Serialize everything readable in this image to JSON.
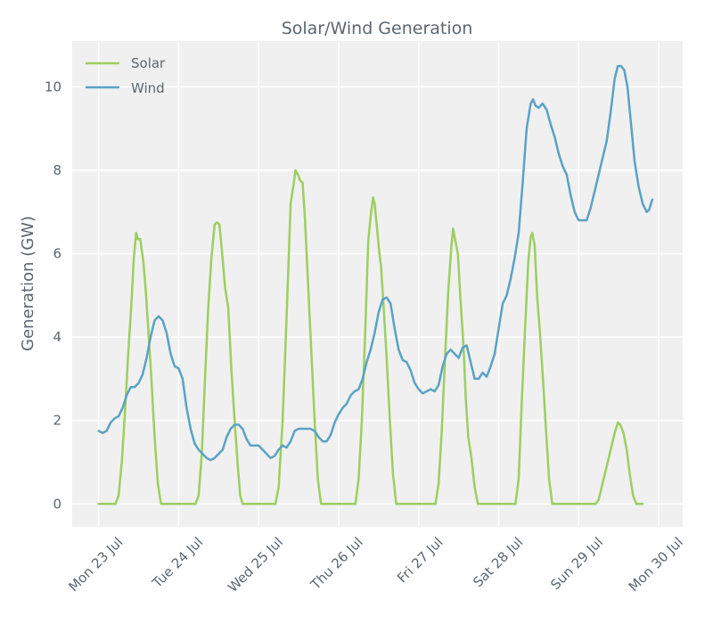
{
  "chart_data": {
    "type": "line",
    "title": "Solar/Wind Generation",
    "xlabel": "",
    "ylabel": "Generation (GW)",
    "ylim": [
      -0.55,
      11.1
    ],
    "xlim_days": [
      -0.33,
      7.3
    ],
    "yticks": [
      0,
      2,
      4,
      6,
      8,
      10
    ],
    "x_tick_labels": [
      "Mon 23 Jul",
      "Tue 24 Jul",
      "Wed 25 Jul",
      "Thu 26 Jul",
      "Fri 27 Jul",
      "Sat 28 Jul",
      "Sun 29 Jul",
      "Mon 30 Jul"
    ],
    "grid": true,
    "legend_position": "top-left",
    "series": [
      {
        "name": "Solar",
        "color": "#9ccf5f",
        "points": [
          [
            0.0,
            0.0
          ],
          [
            0.21,
            0.0
          ],
          [
            0.25,
            0.2
          ],
          [
            0.29,
            1.0
          ],
          [
            0.33,
            2.2
          ],
          [
            0.37,
            3.6
          ],
          [
            0.41,
            4.8
          ],
          [
            0.44,
            5.9
          ],
          [
            0.47,
            6.5
          ],
          [
            0.49,
            6.35
          ],
          [
            0.52,
            6.35
          ],
          [
            0.56,
            5.8
          ],
          [
            0.59,
            5.1
          ],
          [
            0.62,
            4.2
          ],
          [
            0.66,
            3.0
          ],
          [
            0.7,
            1.6
          ],
          [
            0.74,
            0.5
          ],
          [
            0.78,
            0.0
          ],
          [
            1.21,
            0.0
          ],
          [
            1.25,
            0.2
          ],
          [
            1.29,
            1.2
          ],
          [
            1.33,
            3.0
          ],
          [
            1.37,
            4.7
          ],
          [
            1.41,
            5.9
          ],
          [
            1.45,
            6.7
          ],
          [
            1.48,
            6.75
          ],
          [
            1.51,
            6.7
          ],
          [
            1.54,
            6.1
          ],
          [
            1.58,
            5.2
          ],
          [
            1.62,
            4.7
          ],
          [
            1.66,
            3.2
          ],
          [
            1.7,
            2.0
          ],
          [
            1.74,
            0.9
          ],
          [
            1.77,
            0.2
          ],
          [
            1.8,
            0.0
          ],
          [
            2.21,
            0.0
          ],
          [
            2.25,
            0.4
          ],
          [
            2.3,
            2.0
          ],
          [
            2.35,
            4.5
          ],
          [
            2.4,
            7.2
          ],
          [
            2.44,
            7.7
          ],
          [
            2.46,
            8.0
          ],
          [
            2.49,
            7.9
          ],
          [
            2.52,
            7.75
          ],
          [
            2.55,
            7.7
          ],
          [
            2.58,
            6.8
          ],
          [
            2.62,
            5.2
          ],
          [
            2.66,
            3.6
          ],
          [
            2.7,
            2.0
          ],
          [
            2.74,
            0.6
          ],
          [
            2.78,
            0.0
          ],
          [
            3.21,
            0.0
          ],
          [
            3.25,
            0.6
          ],
          [
            3.29,
            2.0
          ],
          [
            3.33,
            4.0
          ],
          [
            3.37,
            6.3
          ],
          [
            3.4,
            6.9
          ],
          [
            3.43,
            7.35
          ],
          [
            3.45,
            7.2
          ],
          [
            3.48,
            6.6
          ],
          [
            3.51,
            6.0
          ],
          [
            3.53,
            5.7
          ],
          [
            3.56,
            4.8
          ],
          [
            3.6,
            3.5
          ],
          [
            3.64,
            2.0
          ],
          [
            3.68,
            0.7
          ],
          [
            3.72,
            0.0
          ],
          [
            4.21,
            0.0
          ],
          [
            4.25,
            0.5
          ],
          [
            4.29,
            1.8
          ],
          [
            4.33,
            3.5
          ],
          [
            4.37,
            5.1
          ],
          [
            4.41,
            6.2
          ],
          [
            4.43,
            6.6
          ],
          [
            4.46,
            6.3
          ],
          [
            4.49,
            6.0
          ],
          [
            4.52,
            5.0
          ],
          [
            4.56,
            3.8
          ],
          [
            4.59,
            2.5
          ],
          [
            4.62,
            1.6
          ],
          [
            4.66,
            1.1
          ],
          [
            4.7,
            0.4
          ],
          [
            4.74,
            0.0
          ],
          [
            5.21,
            0.0
          ],
          [
            5.25,
            0.6
          ],
          [
            5.29,
            2.5
          ],
          [
            5.33,
            4.2
          ],
          [
            5.37,
            5.8
          ],
          [
            5.4,
            6.4
          ],
          [
            5.42,
            6.5
          ],
          [
            5.45,
            6.2
          ],
          [
            5.48,
            5.0
          ],
          [
            5.52,
            4.0
          ],
          [
            5.56,
            2.8
          ],
          [
            5.6,
            1.5
          ],
          [
            5.63,
            0.6
          ],
          [
            5.67,
            0.0
          ],
          [
            6.21,
            0.0
          ],
          [
            6.25,
            0.1
          ],
          [
            6.3,
            0.5
          ],
          [
            6.35,
            0.9
          ],
          [
            6.4,
            1.3
          ],
          [
            6.45,
            1.7
          ],
          [
            6.49,
            1.95
          ],
          [
            6.52,
            1.9
          ],
          [
            6.56,
            1.7
          ],
          [
            6.6,
            1.3
          ],
          [
            6.64,
            0.7
          ],
          [
            6.68,
            0.2
          ],
          [
            6.72,
            0.0
          ],
          [
            6.8,
            0.0
          ]
        ]
      },
      {
        "name": "Wind",
        "color": "#5aa2c4",
        "points": [
          [
            0.0,
            1.75
          ],
          [
            0.05,
            1.7
          ],
          [
            0.1,
            1.75
          ],
          [
            0.15,
            1.95
          ],
          [
            0.2,
            2.05
          ],
          [
            0.25,
            2.1
          ],
          [
            0.3,
            2.3
          ],
          [
            0.35,
            2.6
          ],
          [
            0.4,
            2.8
          ],
          [
            0.45,
            2.8
          ],
          [
            0.5,
            2.9
          ],
          [
            0.55,
            3.1
          ],
          [
            0.6,
            3.5
          ],
          [
            0.65,
            4.0
          ],
          [
            0.7,
            4.4
          ],
          [
            0.75,
            4.5
          ],
          [
            0.8,
            4.4
          ],
          [
            0.85,
            4.1
          ],
          [
            0.9,
            3.6
          ],
          [
            0.95,
            3.3
          ],
          [
            1.0,
            3.25
          ],
          [
            1.05,
            3.0
          ],
          [
            1.1,
            2.3
          ],
          [
            1.15,
            1.8
          ],
          [
            1.2,
            1.45
          ],
          [
            1.25,
            1.3
          ],
          [
            1.3,
            1.2
          ],
          [
            1.35,
            1.1
          ],
          [
            1.4,
            1.05
          ],
          [
            1.45,
            1.1
          ],
          [
            1.5,
            1.2
          ],
          [
            1.55,
            1.3
          ],
          [
            1.6,
            1.6
          ],
          [
            1.65,
            1.8
          ],
          [
            1.7,
            1.9
          ],
          [
            1.75,
            1.9
          ],
          [
            1.8,
            1.8
          ],
          [
            1.85,
            1.55
          ],
          [
            1.9,
            1.4
          ],
          [
            1.95,
            1.4
          ],
          [
            2.0,
            1.4
          ],
          [
            2.05,
            1.3
          ],
          [
            2.1,
            1.2
          ],
          [
            2.15,
            1.1
          ],
          [
            2.2,
            1.15
          ],
          [
            2.25,
            1.3
          ],
          [
            2.3,
            1.4
          ],
          [
            2.35,
            1.35
          ],
          [
            2.4,
            1.5
          ],
          [
            2.45,
            1.75
          ],
          [
            2.5,
            1.8
          ],
          [
            2.55,
            1.8
          ],
          [
            2.6,
            1.8
          ],
          [
            2.65,
            1.8
          ],
          [
            2.7,
            1.75
          ],
          [
            2.75,
            1.6
          ],
          [
            2.8,
            1.5
          ],
          [
            2.85,
            1.5
          ],
          [
            2.9,
            1.65
          ],
          [
            2.95,
            1.95
          ],
          [
            3.0,
            2.15
          ],
          [
            3.05,
            2.3
          ],
          [
            3.1,
            2.4
          ],
          [
            3.15,
            2.6
          ],
          [
            3.2,
            2.7
          ],
          [
            3.25,
            2.75
          ],
          [
            3.3,
            3.0
          ],
          [
            3.35,
            3.4
          ],
          [
            3.4,
            3.7
          ],
          [
            3.45,
            4.1
          ],
          [
            3.5,
            4.6
          ],
          [
            3.55,
            4.9
          ],
          [
            3.6,
            4.95
          ],
          [
            3.65,
            4.8
          ],
          [
            3.7,
            4.2
          ],
          [
            3.75,
            3.7
          ],
          [
            3.8,
            3.45
          ],
          [
            3.85,
            3.4
          ],
          [
            3.9,
            3.2
          ],
          [
            3.95,
            2.9
          ],
          [
            4.0,
            2.75
          ],
          [
            4.05,
            2.65
          ],
          [
            4.1,
            2.7
          ],
          [
            4.15,
            2.75
          ],
          [
            4.2,
            2.7
          ],
          [
            4.25,
            2.85
          ],
          [
            4.3,
            3.3
          ],
          [
            4.35,
            3.6
          ],
          [
            4.4,
            3.7
          ],
          [
            4.45,
            3.6
          ],
          [
            4.5,
            3.5
          ],
          [
            4.55,
            3.75
          ],
          [
            4.6,
            3.8
          ],
          [
            4.65,
            3.4
          ],
          [
            4.7,
            3.0
          ],
          [
            4.75,
            3.0
          ],
          [
            4.8,
            3.15
          ],
          [
            4.85,
            3.05
          ],
          [
            4.9,
            3.3
          ],
          [
            4.95,
            3.6
          ],
          [
            5.0,
            4.2
          ],
          [
            5.05,
            4.8
          ],
          [
            5.1,
            5.0
          ],
          [
            5.15,
            5.4
          ],
          [
            5.2,
            5.9
          ],
          [
            5.25,
            6.5
          ],
          [
            5.3,
            7.7
          ],
          [
            5.35,
            9.0
          ],
          [
            5.4,
            9.6
          ],
          [
            5.43,
            9.7
          ],
          [
            5.46,
            9.55
          ],
          [
            5.5,
            9.5
          ],
          [
            5.55,
            9.6
          ],
          [
            5.6,
            9.45
          ],
          [
            5.65,
            9.1
          ],
          [
            5.7,
            8.8
          ],
          [
            5.75,
            8.4
          ],
          [
            5.8,
            8.1
          ],
          [
            5.85,
            7.9
          ],
          [
            5.9,
            7.4
          ],
          [
            5.95,
            7.0
          ],
          [
            6.0,
            6.8
          ],
          [
            6.05,
            6.8
          ],
          [
            6.1,
            6.8
          ],
          [
            6.15,
            7.1
          ],
          [
            6.2,
            7.5
          ],
          [
            6.25,
            7.9
          ],
          [
            6.3,
            8.3
          ],
          [
            6.35,
            8.7
          ],
          [
            6.4,
            9.4
          ],
          [
            6.45,
            10.2
          ],
          [
            6.49,
            10.5
          ],
          [
            6.53,
            10.5
          ],
          [
            6.57,
            10.4
          ],
          [
            6.61,
            10.0
          ],
          [
            6.65,
            9.2
          ],
          [
            6.7,
            8.2
          ],
          [
            6.75,
            7.6
          ],
          [
            6.8,
            7.2
          ],
          [
            6.85,
            7.0
          ],
          [
            6.88,
            7.05
          ],
          [
            6.92,
            7.3
          ]
        ]
      }
    ]
  }
}
